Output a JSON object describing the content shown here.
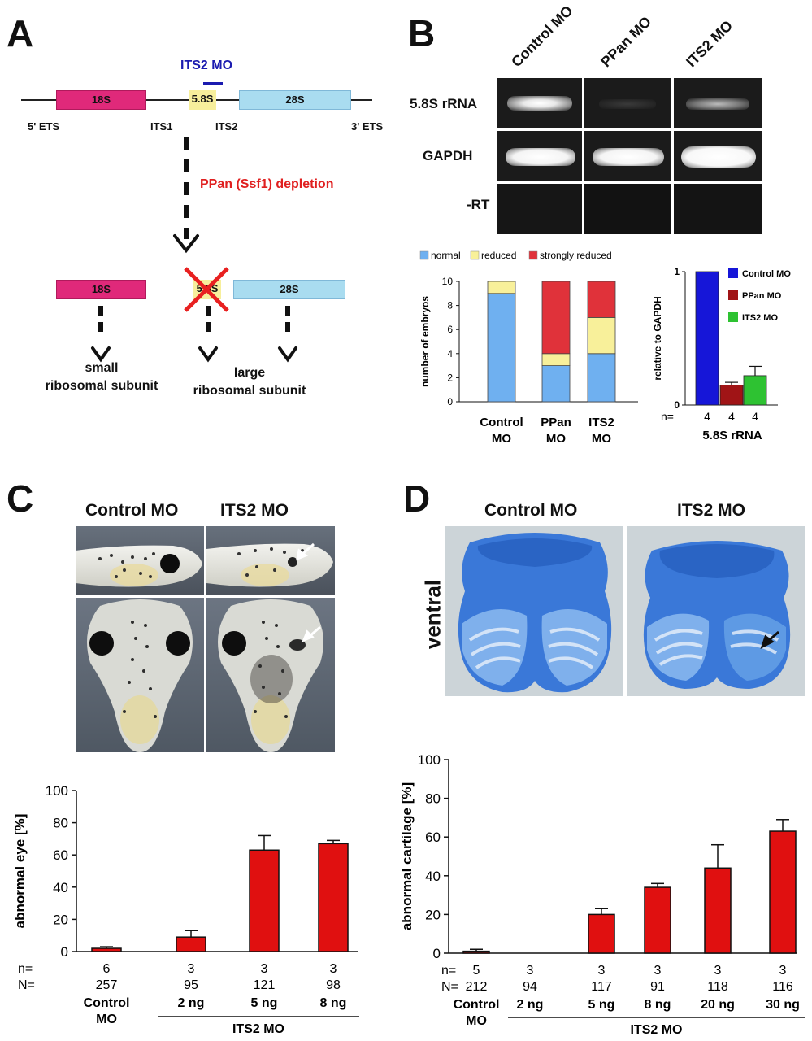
{
  "panels": {
    "a": "A",
    "b": "B",
    "c": "C",
    "d": "D"
  },
  "panel_a": {
    "its2_mo": "ITS2 MO",
    "gene_segments": [
      "18S",
      "5.8S",
      "28S"
    ],
    "bottom_labels": [
      "5' ETS",
      "ITS1",
      "ITS2",
      "3' ETS"
    ],
    "depletion": "PPan (Ssf1) depletion",
    "product_segments": [
      "18S",
      "5.8S",
      "28S"
    ],
    "small_subunit": [
      "small",
      "ribosomal subunit"
    ],
    "large_subunit": [
      "large",
      "ribosomal subunit"
    ],
    "colors": {
      "s18": "#e0297a",
      "s58": "#f7ef9c",
      "s28": "#a9dcf0",
      "x": "#e82020",
      "its2_mo": "#1b1bb0",
      "depletion": "#e02020"
    }
  },
  "panel_b": {
    "lanes": [
      "Control MO",
      "PPan MO",
      "ITS2 MO"
    ],
    "rows": [
      "5.8S rRNA",
      "GAPDH",
      "-RT"
    ]
  },
  "chart_data": [
    {
      "id": "embryo-counts",
      "type": "bar",
      "stacked": true,
      "categories": [
        "Control MO",
        "PPan MO",
        "ITS2 MO"
      ],
      "series": [
        {
          "name": "normal",
          "values": [
            9,
            3,
            4
          ],
          "color": "#6fb0f0"
        },
        {
          "name": "reduced",
          "values": [
            1,
            1,
            3
          ],
          "color": "#f8f09a"
        },
        {
          "name": "strongly reduced",
          "values": [
            0,
            6,
            3
          ],
          "color": "#e0323a"
        }
      ],
      "ylabel": "number of embryos",
      "ylim": [
        0,
        10
      ],
      "yticks": [
        "0",
        "2",
        "4",
        "6",
        "8",
        "10"
      ],
      "legend": "top"
    },
    {
      "id": "rrna-relative",
      "type": "bar",
      "categories": [
        "Control MO",
        "PPan MO",
        "ITS2 MO"
      ],
      "values": [
        1.0,
        0.15,
        0.22
      ],
      "errors": [
        0,
        0.02,
        0.07
      ],
      "colors": [
        "#1616d8",
        "#a01416",
        "#2ec232"
      ],
      "ylabel": "relative to GAPDH",
      "xlabel": "5.8S rRNA",
      "ylim": [
        0,
        1
      ],
      "yticks": [
        "0",
        "1"
      ],
      "n_label": "n=",
      "n_values": [
        "4",
        "4",
        "4"
      ],
      "legend": "right"
    },
    {
      "id": "abnormal-eye",
      "type": "bar",
      "categories": [
        "Control MO",
        "2 ng",
        "5 ng",
        "8 ng"
      ],
      "values": [
        2,
        9,
        63,
        67
      ],
      "errors": [
        1,
        4,
        9,
        2
      ],
      "color": "#e01010",
      "ylabel": "abnormal eye [%]",
      "ylim": [
        0,
        100
      ],
      "yticks": [
        "0",
        "20",
        "40",
        "60",
        "80",
        "100"
      ],
      "n_label": "n=",
      "N_label": "N=",
      "n_values": [
        "6",
        "3",
        "3",
        "3"
      ],
      "N_values": [
        "257",
        "95",
        "121",
        "98"
      ],
      "group_label": "ITS2 MO"
    },
    {
      "id": "abnormal-cartilage",
      "type": "bar",
      "categories": [
        "Control MO",
        "2 ng",
        "5 ng",
        "8 ng",
        "20 ng",
        "30 ng"
      ],
      "values": [
        1,
        0,
        20,
        34,
        44,
        63
      ],
      "errors": [
        1,
        0,
        3,
        2,
        12,
        6
      ],
      "color": "#e01010",
      "ylabel": "abnormal cartilage [%]",
      "ylim": [
        0,
        100
      ],
      "yticks": [
        "0",
        "20",
        "40",
        "60",
        "80",
        "100"
      ],
      "n_label": "n=",
      "N_label": "N=",
      "n_values": [
        "5",
        "3",
        "3",
        "3",
        "3",
        "3"
      ],
      "N_values": [
        "212",
        "94",
        "117",
        "91",
        "118",
        "116"
      ],
      "group_label": "ITS2 MO"
    }
  ],
  "panel_c": {
    "col1": "Control MO",
    "col2": "ITS2 MO",
    "cat_line1": "Control",
    "cat_line2": "MO"
  },
  "panel_d": {
    "col1": "Control MO",
    "col2": "ITS2 MO",
    "side": "ventral",
    "cat_line1": "Control",
    "cat_line2": "MO"
  },
  "panel_b_cats": [
    [
      "Control",
      "MO"
    ],
    [
      "PPan",
      "MO"
    ],
    [
      "ITS2",
      "MO"
    ]
  ]
}
